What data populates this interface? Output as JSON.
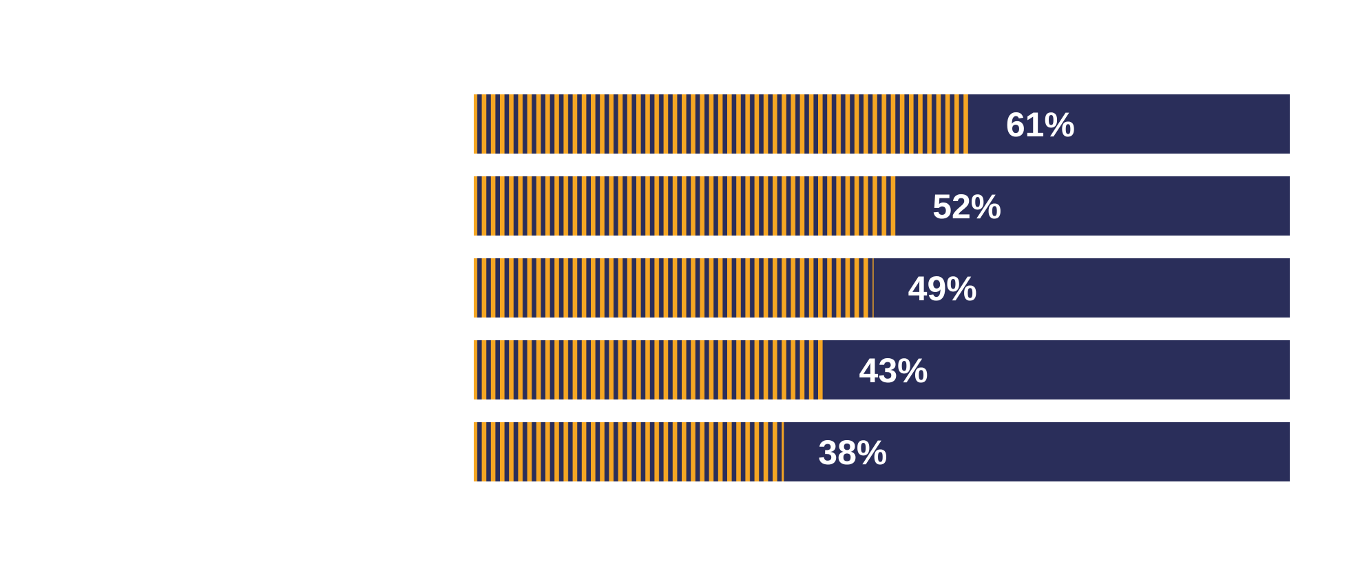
{
  "chart_data": {
    "type": "bar",
    "orientation": "horizontal",
    "style": "stacked-percent",
    "categories": [
      "",
      "",
      "",
      "",
      ""
    ],
    "values": [
      61,
      52,
      49,
      43,
      38
    ],
    "data_labels": [
      "61%",
      "52%",
      "49%",
      "43%",
      "38%"
    ],
    "xlim": [
      0,
      100
    ],
    "grid": false,
    "legend": "none"
  },
  "colors": {
    "fill_stripe_primary": "#f5a623",
    "fill_stripe_secondary": "#2a2e5a",
    "remainder": "#2a2e5a",
    "label_text": "#ffffff",
    "category_text": "#ffffff",
    "background": "#ffffff"
  }
}
